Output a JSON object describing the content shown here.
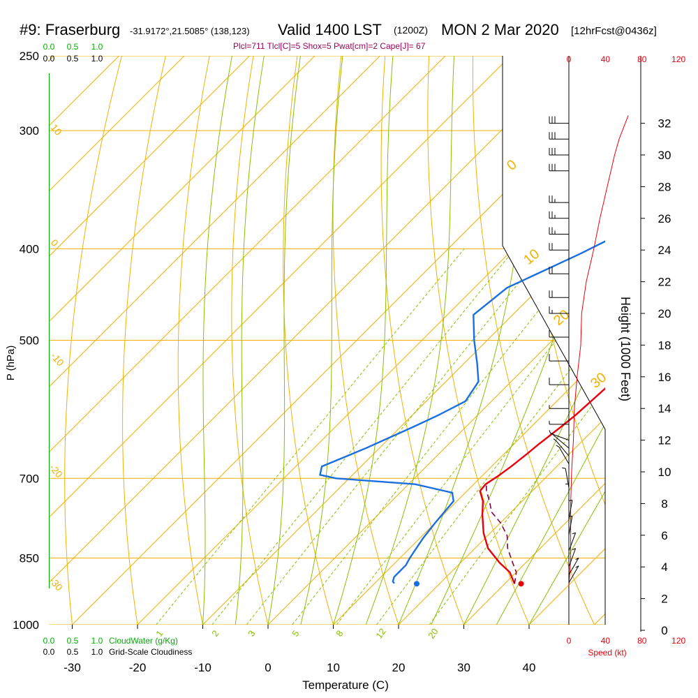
{
  "header": {
    "station": "#9: Fraserburg",
    "coords": "-31.9172°,21.5085° (138,123)",
    "valid": "Valid 1400 LST",
    "zulu": "(1200Z)",
    "date": "MON 2 Mar 2020",
    "forecast": "[12hrFcst@0436z]",
    "indices": "Plcl=711 Tlcl[C]=5 Shox=5 Pwat[cm]=2 Cape[J]= 67"
  },
  "colors": {
    "temperature": "#e8000b",
    "dewpoint": "#1a6fe0",
    "parcel": "#800040",
    "isotherm_isobar": "#f2b000",
    "dry_adiabat": "#f2b000",
    "moist_adiabat": "#88c000",
    "mixing_ratio": "#88c000",
    "cloudwater": "#00b000",
    "speed": "#e8000b",
    "indices_text": "#a0005a"
  },
  "chart_data": {
    "type": "line",
    "title": "#9: Fraserburg",
    "xlabel": "Temperature (C)",
    "ylabel": "P (hPa)",
    "y2label": "Height (1000 Feet)",
    "speed_label": "Speed (kt)",
    "x_ticks": [
      "-30",
      "-20",
      "-10",
      "0",
      "10",
      "20",
      "30",
      "40"
    ],
    "y_ticks": [
      "250",
      "300",
      "400",
      "500",
      "700",
      "850",
      "1000"
    ],
    "height_ticks": [
      "0",
      "2",
      "4",
      "6",
      "8",
      "10",
      "12",
      "14",
      "16",
      "18",
      "20",
      "22",
      "24",
      "26",
      "28",
      "30",
      "32"
    ],
    "speed_ticks": [
      "0",
      "40",
      "80",
      "120"
    ],
    "cloudwater_ticks": [
      "0.0",
      "0.5",
      "1.0"
    ],
    "cloudiness_ticks": [
      "0.0",
      "0.5",
      "1.0"
    ],
    "cloudwater_label": "CloudWater (g/Kg)",
    "cloudiness_label": "Grid-Scale Cloudiness",
    "dry_adiabat_labels": [
      "0",
      "10",
      "20",
      "30"
    ],
    "isotherm_labels": [
      "10",
      "0",
      "-10",
      "-20",
      "-30"
    ],
    "mixing_ratio_labels": [
      "1",
      "2",
      "3",
      "5",
      "8",
      "12",
      "20"
    ],
    "xlim": [
      -30,
      40
    ],
    "ylim": [
      1000,
      250
    ],
    "series": [
      {
        "key": "temperature",
        "points": [
          [
            31.5,
            905
          ],
          [
            29,
            880
          ],
          [
            26,
            860
          ],
          [
            22,
            830
          ],
          [
            19,
            800
          ],
          [
            16,
            765
          ],
          [
            14,
            740
          ],
          [
            12,
            722
          ],
          [
            11.8,
            710
          ],
          [
            12.5,
            695
          ],
          [
            13,
            680
          ],
          [
            13.5,
            660
          ],
          [
            13.8,
            645
          ],
          [
            14.5,
            620
          ],
          [
            15,
            600
          ],
          [
            15.5,
            560
          ],
          [
            16,
            530
          ],
          [
            16,
            500
          ],
          [
            16,
            480
          ],
          [
            15.5,
            445
          ],
          [
            14.5,
            410
          ],
          [
            12.5,
            365
          ],
          [
            10.5,
            330
          ],
          [
            8,
            300
          ],
          [
            5.5,
            275
          ],
          [
            4,
            262
          ]
        ]
      },
      {
        "key": "dewpoint",
        "points": [
          [
            13,
            904
          ],
          [
            12.5,
            900
          ],
          [
            12,
            890
          ],
          [
            12,
            865
          ],
          [
            11.5,
            850
          ],
          [
            10.5,
            810
          ],
          [
            10,
            780
          ],
          [
            9.5,
            740
          ],
          [
            8,
            725
          ],
          [
            1,
            710
          ],
          [
            -12,
            700
          ],
          [
            -15,
            694
          ],
          [
            -16,
            680
          ],
          [
            -12,
            650
          ],
          [
            -8,
            617
          ],
          [
            -6,
            600
          ],
          [
            -4,
            580
          ],
          [
            -5,
            553
          ],
          [
            -8,
            529
          ],
          [
            -12,
            500
          ],
          [
            -16,
            470
          ],
          [
            -15,
            440
          ],
          [
            -9,
            405
          ],
          [
            -5,
            380
          ],
          [
            -1,
            355
          ],
          [
            1,
            330
          ],
          [
            1,
            310
          ],
          [
            -1,
            300
          ],
          [
            -4,
            285
          ],
          [
            -6,
            275
          ],
          [
            -8,
            262
          ]
        ]
      },
      {
        "key": "parcel",
        "points": [
          [
            31.5,
            905
          ],
          [
            30,
            880
          ],
          [
            28,
            860
          ],
          [
            25,
            830
          ],
          [
            23,
            805
          ],
          [
            20,
            780
          ],
          [
            17,
            760
          ],
          [
            15,
            740
          ],
          [
            13,
            722
          ],
          [
            12,
            711
          ]
        ]
      }
    ],
    "surface_temperature": 32.5,
    "surface_dewpoint": 16.5,
    "surface_pressure": 905,
    "wind_speed_profile": [
      [
        0,
        2.8
      ],
      [
        2,
        4.5
      ],
      [
        2,
        8
      ],
      [
        3,
        10
      ],
      [
        5,
        12
      ],
      [
        6,
        14
      ],
      [
        9,
        16
      ],
      [
        13,
        18
      ],
      [
        14,
        20
      ],
      [
        19,
        22
      ],
      [
        27,
        24
      ],
      [
        34,
        26
      ],
      [
        42,
        28
      ],
      [
        50,
        30
      ],
      [
        55,
        31
      ],
      [
        65,
        32.5
      ]
    ],
    "wind_barbs": [
      {
        "h": 32,
        "dir": 270,
        "spd": 30
      },
      {
        "h": 31,
        "dir": 270,
        "spd": 30
      },
      {
        "h": 30,
        "dir": 270,
        "spd": 30
      },
      {
        "h": 29,
        "dir": 270,
        "spd": 30
      },
      {
        "h": 27,
        "dir": 270,
        "spd": 25
      },
      {
        "h": 26,
        "dir": 270,
        "spd": 25
      },
      {
        "h": 25,
        "dir": 270,
        "spd": 25
      },
      {
        "h": 24,
        "dir": 270,
        "spd": 20
      },
      {
        "h": 22.5,
        "dir": 270,
        "spd": 20
      },
      {
        "h": 21,
        "dir": 270,
        "spd": 20
      },
      {
        "h": 20,
        "dir": 270,
        "spd": 15
      },
      {
        "h": 18.5,
        "dir": 270,
        "spd": 10
      },
      {
        "h": 17,
        "dir": 270,
        "spd": 10
      },
      {
        "h": 15.5,
        "dir": 270,
        "spd": 10
      },
      {
        "h": 14,
        "dir": 270,
        "spd": 5
      },
      {
        "h": 13,
        "dir": 270,
        "spd": 5
      },
      {
        "h": 12,
        "dir": 250,
        "spd": 5
      },
      {
        "h": 11.5,
        "dir": 230,
        "spd": 5
      },
      {
        "h": 11,
        "dir": 220,
        "spd": 5
      },
      {
        "h": 10.5,
        "dir": 210,
        "spd": 5
      },
      {
        "h": 9,
        "dir": 190,
        "spd": 5
      },
      {
        "h": 8,
        "dir": 180,
        "spd": 5
      },
      {
        "h": 7,
        "dir": 170,
        "spd": 5
      },
      {
        "h": 6,
        "dir": 170,
        "spd": 5
      },
      {
        "h": 5,
        "dir": 160,
        "spd": 5
      },
      {
        "h": 4,
        "dir": 160,
        "spd": 5
      },
      {
        "h": 3.5,
        "dir": 150,
        "spd": 5
      },
      {
        "h": 3,
        "dir": 150,
        "spd": 5
      }
    ]
  }
}
